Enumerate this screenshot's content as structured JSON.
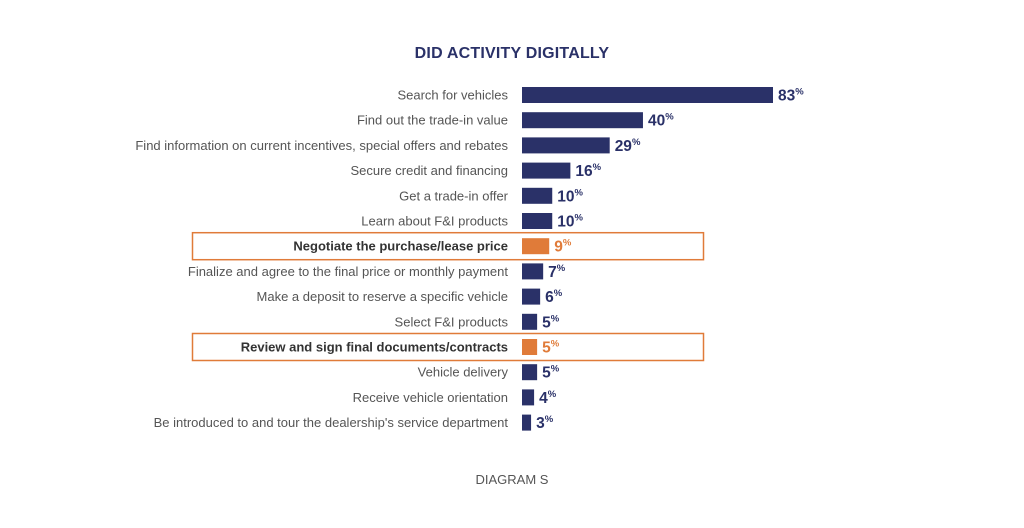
{
  "chart_data": {
    "type": "bar",
    "orientation": "horizontal",
    "title": "DID ACTIVITY DIGITALLY",
    "caption": "DIAGRAM S",
    "unit": "%",
    "xlim": [
      0,
      83
    ],
    "categories": [
      "Search for vehicles",
      "Find out the trade-in value",
      "Find information on current incentives, special offers and rebates",
      "Secure credit and financing",
      "Get a trade-in offer",
      "Learn about F&I products",
      "Negotiate the purchase/lease price",
      "Finalize and agree to the final price or monthly payment",
      "Make a deposit to reserve a specific vehicle",
      "Select F&I products",
      "Review and sign final documents/contracts",
      "Vehicle delivery",
      "Receive vehicle orientation",
      "Be introduced to and tour the dealership's service department"
    ],
    "values": [
      83,
      40,
      29,
      16,
      10,
      10,
      9,
      7,
      6,
      5,
      5,
      5,
      4,
      3
    ],
    "highlighted": [
      "Negotiate the purchase/lease price",
      "Review and sign final documents/contracts"
    ],
    "grid": false,
    "legend": "none",
    "colors": {
      "bar": "#2a3168",
      "highlight": "#e07b39",
      "label": "#555555"
    }
  }
}
